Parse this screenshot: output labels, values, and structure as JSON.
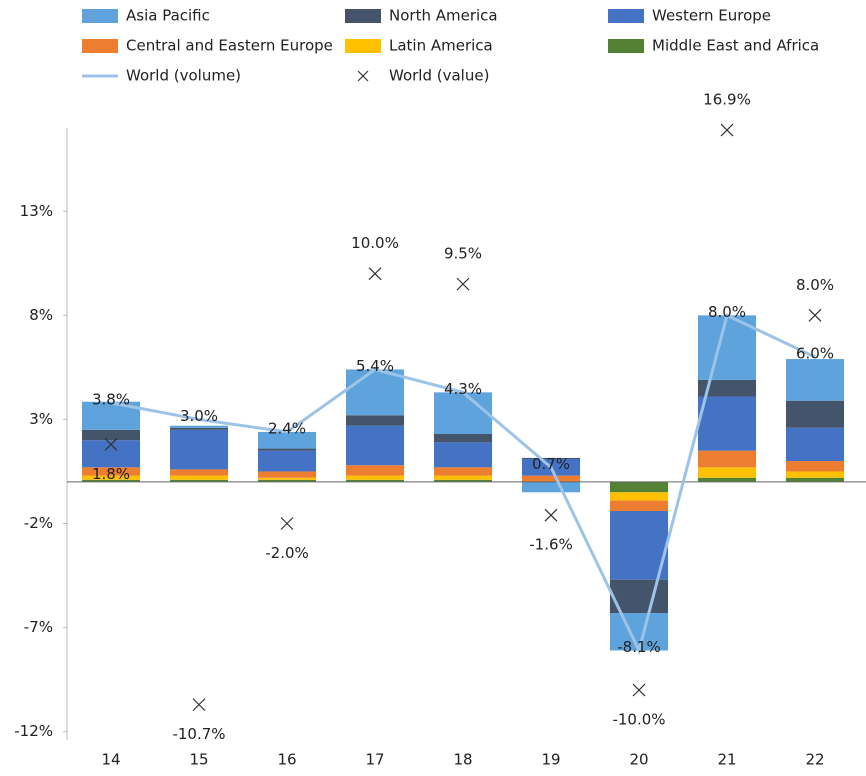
{
  "chart_data": {
    "type": "bar",
    "stacked": true,
    "categories": [
      "14",
      "15",
      "16",
      "17",
      "18",
      "19",
      "20",
      "21",
      "22"
    ],
    "series": [
      {
        "name": "Asia Pacific",
        "color": "#5ea3dc",
        "values": [
          1.35,
          0.1,
          0.8,
          2.2,
          2.0,
          -0.5,
          -1.8,
          3.1,
          2.0
        ]
      },
      {
        "name": "North America",
        "color": "#44546a",
        "values": [
          0.5,
          0.1,
          0.1,
          0.5,
          0.4,
          0.05,
          -1.6,
          0.8,
          1.3
        ]
      },
      {
        "name": "Western Europe",
        "color": "#4472c4",
        "values": [
          1.3,
          1.9,
          1.0,
          1.9,
          1.2,
          0.8,
          -3.3,
          2.6,
          1.6
        ]
      },
      {
        "name": "Central and Eastern Europe",
        "color": "#ed7d31",
        "values": [
          0.4,
          0.3,
          0.3,
          0.5,
          0.4,
          0.3,
          -0.5,
          0.8,
          0.5
        ]
      },
      {
        "name": "Latin America",
        "color": "#ffc000",
        "values": [
          0.2,
          0.2,
          0.1,
          0.2,
          0.2,
          0,
          -0.4,
          0.5,
          0.3
        ]
      },
      {
        "name": "Middle East and Africa",
        "color": "#548235",
        "values": [
          0.1,
          0.1,
          0.1,
          0.1,
          0.1,
          0,
          -0.5,
          0.2,
          0.2
        ]
      },
      {
        "name": "World (volume)",
        "type": "line",
        "color": "#9dc3e6",
        "values": [
          3.8,
          3.0,
          2.4,
          5.4,
          4.3,
          0.7,
          -8.1,
          8.0,
          6.0
        ],
        "value_labels": [
          "3.8%",
          "3.0%",
          "2.4%",
          "5.4%",
          "4.3%",
          "0.7%",
          "-8.1%",
          "8.0%",
          "6.0%"
        ]
      },
      {
        "name": "World (value)",
        "type": "scatter",
        "color": "#333333",
        "values": [
          1.8,
          -10.7,
          -2.0,
          10.0,
          9.5,
          -1.6,
          -10.0,
          16.9,
          8.0
        ],
        "value_labels": [
          "1.8%",
          "-10.7%",
          "-2.0%",
          "10.0%",
          "9.5%",
          "-1.6%",
          "-10.0%",
          "16.9%",
          "8.0%"
        ]
      }
    ],
    "ylim": [
      -12.4,
      17
    ],
    "yticks": [
      {
        "value": -12,
        "label": "-12%"
      },
      {
        "value": -7,
        "label": "-7%"
      },
      {
        "value": -2,
        "label": "-2%"
      },
      {
        "value": 3,
        "label": "3%"
      },
      {
        "value": 8,
        "label": "8%"
      },
      {
        "value": 13,
        "label": "13%"
      }
    ],
    "legend": "top"
  }
}
